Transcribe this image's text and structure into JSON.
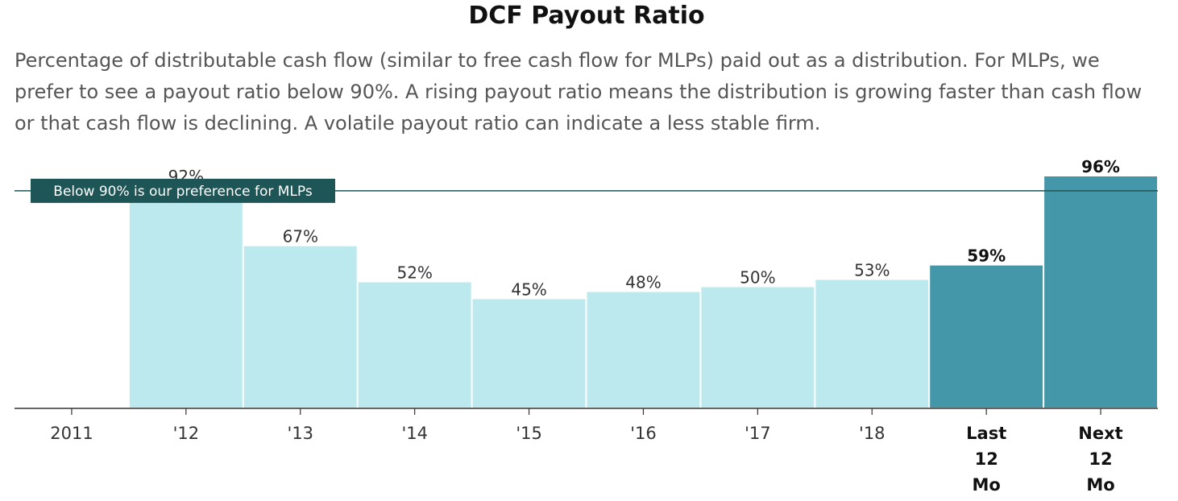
{
  "chart_data": {
    "type": "bar",
    "title": "DCF Payout Ratio",
    "subtitle": "Percentage of distributable cash flow (similar to free cash flow for MLPs) paid out as a distribution. For MLPs, we prefer to see a payout ratio below 90%. A rising payout ratio means the distribution is growing faster than cash flow or that cash flow is declining. A volatile payout ratio can indicate a less stable firm.",
    "categories": [
      "2011",
      "'12",
      "'13",
      "'14",
      "'15",
      "'16",
      "'17",
      "'18",
      "Last 12 Mo",
      "Next 12 Mo"
    ],
    "values": [
      null,
      92,
      67,
      52,
      45,
      48,
      50,
      53,
      59,
      96
    ],
    "value_labels": [
      "",
      "92%",
      "67%",
      "52%",
      "45%",
      "48%",
      "50%",
      "53%",
      "59%",
      "96%"
    ],
    "highlighted": [
      false,
      false,
      false,
      false,
      false,
      false,
      false,
      false,
      true,
      true
    ],
    "reference_line": {
      "value": 90,
      "label": "Below 90% is our preference for MLPs"
    },
    "ylim": [
      0,
      100
    ],
    "grid": false,
    "colors": {
      "bar": "#bce9ee",
      "bar_highlight": "#4397a9",
      "reference_line": "#1e5556",
      "reference_label_bg": "#1e5556",
      "axis": "#333333"
    }
  }
}
